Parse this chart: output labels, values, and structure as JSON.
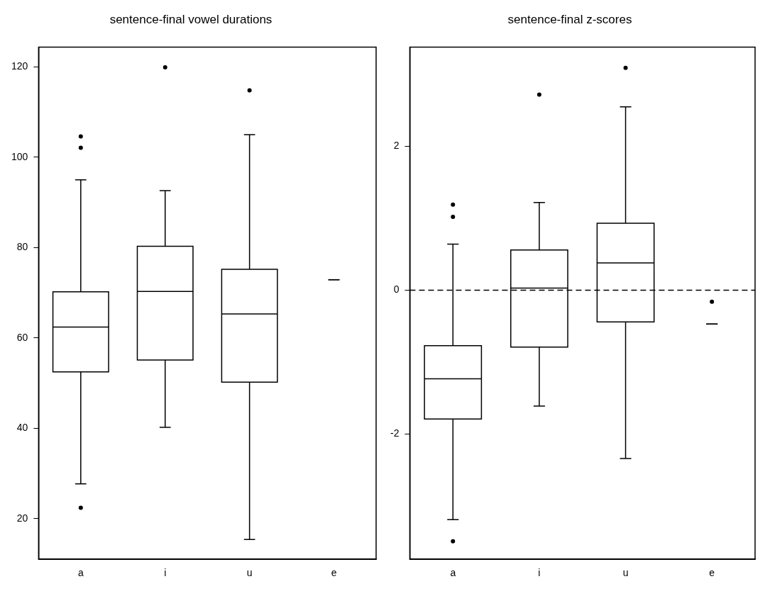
{
  "chart_data": [
    {
      "type": "box",
      "title": "sentence-final vowel durations",
      "categories": [
        "a",
        "i",
        "u",
        "e"
      ],
      "ylim": [
        11,
        124.4
      ],
      "yticks": [
        20,
        40,
        60,
        80,
        100,
        120
      ],
      "boxes": [
        {
          "low": 27.7,
          "q1": 52.5,
          "median": 62.4,
          "q3": 70.2,
          "high": 95,
          "outliers": [
            104.6,
            102.1,
            22.4
          ]
        },
        {
          "low": 40.2,
          "q1": 55.1,
          "median": 70.3,
          "q3": 80.3,
          "high": 92.6,
          "outliers": [
            119.9
          ]
        },
        {
          "low": 15.4,
          "q1": 50.2,
          "median": 65.3,
          "q3": 75.2,
          "high": 105,
          "outliers": [
            114.8
          ]
        },
        {
          "low": 72.9,
          "q1": 72.9,
          "median": 72.9,
          "q3": 72.9,
          "high": 72.9
        }
      ]
    },
    {
      "type": "box",
      "title": "sentence-final z-scores",
      "categories": [
        "a",
        "i",
        "u",
        "e"
      ],
      "ylim": [
        -3.74,
        3.38
      ],
      "yticks": [
        -2,
        0,
        2
      ],
      "ref_lines": [
        {
          "axis": "y",
          "value": 0,
          "line_style": "dashed"
        }
      ],
      "boxes": [
        {
          "low": -3.19,
          "q1": -1.79,
          "median": -1.23,
          "q3": -0.77,
          "high": 0.64,
          "outliers": [
            1.19,
            1.02,
            -3.49
          ]
        },
        {
          "low": -1.61,
          "q1": -0.79,
          "median": 0.03,
          "q3": 0.56,
          "high": 1.22,
          "outliers": [
            2.72
          ]
        },
        {
          "low": -2.34,
          "q1": -0.44,
          "median": 0.38,
          "q3": 0.93,
          "high": 2.55,
          "outliers": [
            3.09
          ]
        },
        {
          "low": -0.47,
          "q1": -0.47,
          "median": -0.47,
          "q3": -0.47,
          "high": -0.47,
          "outliers": [
            -0.16
          ]
        }
      ]
    }
  ]
}
